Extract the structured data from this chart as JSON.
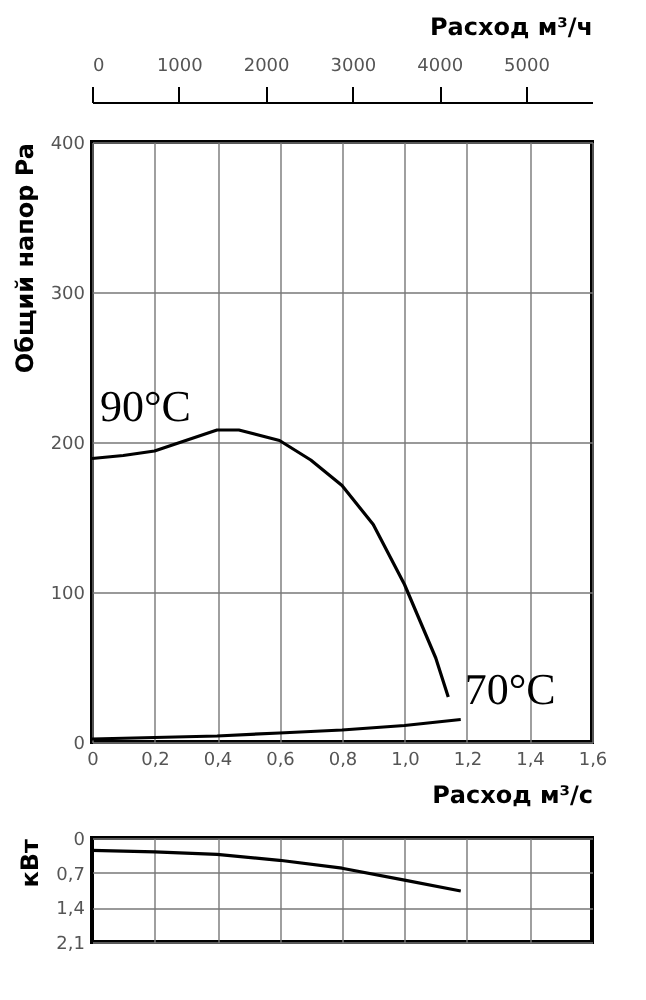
{
  "chart_data": [
    {
      "type": "line",
      "ylabel": "Общий напор Pa",
      "xlabel": "Расход м³/с",
      "x2label": "Расход м³/ч",
      "xlim": [
        0,
        1.6
      ],
      "xticks": [
        0,
        {
          "value": 0.2,
          "label": "0,2"
        },
        {
          "value": 0.4,
          "label": "0,4"
        },
        {
          "value": 0.6,
          "label": "0,6"
        },
        {
          "value": 0.8,
          "label": "0,8"
        },
        {
          "value": 1.0,
          "label": "1,0"
        },
        {
          "value": 1.2,
          "label": "1,2"
        },
        {
          "value": 1.4,
          "label": "1,4"
        },
        {
          "value": 1.6,
          "label": "1,6"
        }
      ],
      "x2lim": [
        0,
        5760
      ],
      "x2ticks": [
        0,
        1000,
        2000,
        3000,
        4000,
        5000
      ],
      "ylim": [
        0,
        400
      ],
      "yticks": [
        0,
        100,
        200,
        300,
        400
      ],
      "grid": true,
      "marker": "none",
      "line_style": "solid",
      "series": [
        {
          "name": "90°C",
          "color": "#000000",
          "x": [
            0,
            0.1,
            0.2,
            0.3,
            0.4,
            0.47,
            0.6,
            0.7,
            0.8,
            0.9,
            1.0,
            1.1,
            1.14
          ],
          "values": [
            189,
            191,
            194,
            201,
            208,
            208,
            201,
            188,
            171,
            145,
            105,
            56,
            30
          ]
        },
        {
          "name": "70°C",
          "color": "#000000",
          "x": [
            0,
            0.2,
            0.4,
            0.6,
            0.8,
            1.0,
            1.18
          ],
          "values": [
            2,
            3,
            4,
            6,
            8,
            11,
            15
          ]
        }
      ]
    },
    {
      "type": "line",
      "ylabel": "кВт",
      "xlim": [
        0,
        1.6
      ],
      "ylim": [
        2.1,
        0
      ],
      "yticks": [
        0,
        {
          "value": 0.7,
          "label": "0,7"
        },
        {
          "value": 1.4,
          "label": "1,4"
        },
        {
          "value": 2.1,
          "label": "2,1"
        }
      ],
      "grid": true,
      "tick_labels": "y",
      "marker": "none",
      "line_style": "solid",
      "series": [
        {
          "color": "#000000",
          "x": [
            0,
            0.2,
            0.4,
            0.6,
            0.8,
            1.0,
            1.18
          ],
          "values": [
            0.25,
            0.28,
            0.33,
            0.45,
            0.61,
            0.85,
            1.07
          ]
        }
      ]
    }
  ]
}
